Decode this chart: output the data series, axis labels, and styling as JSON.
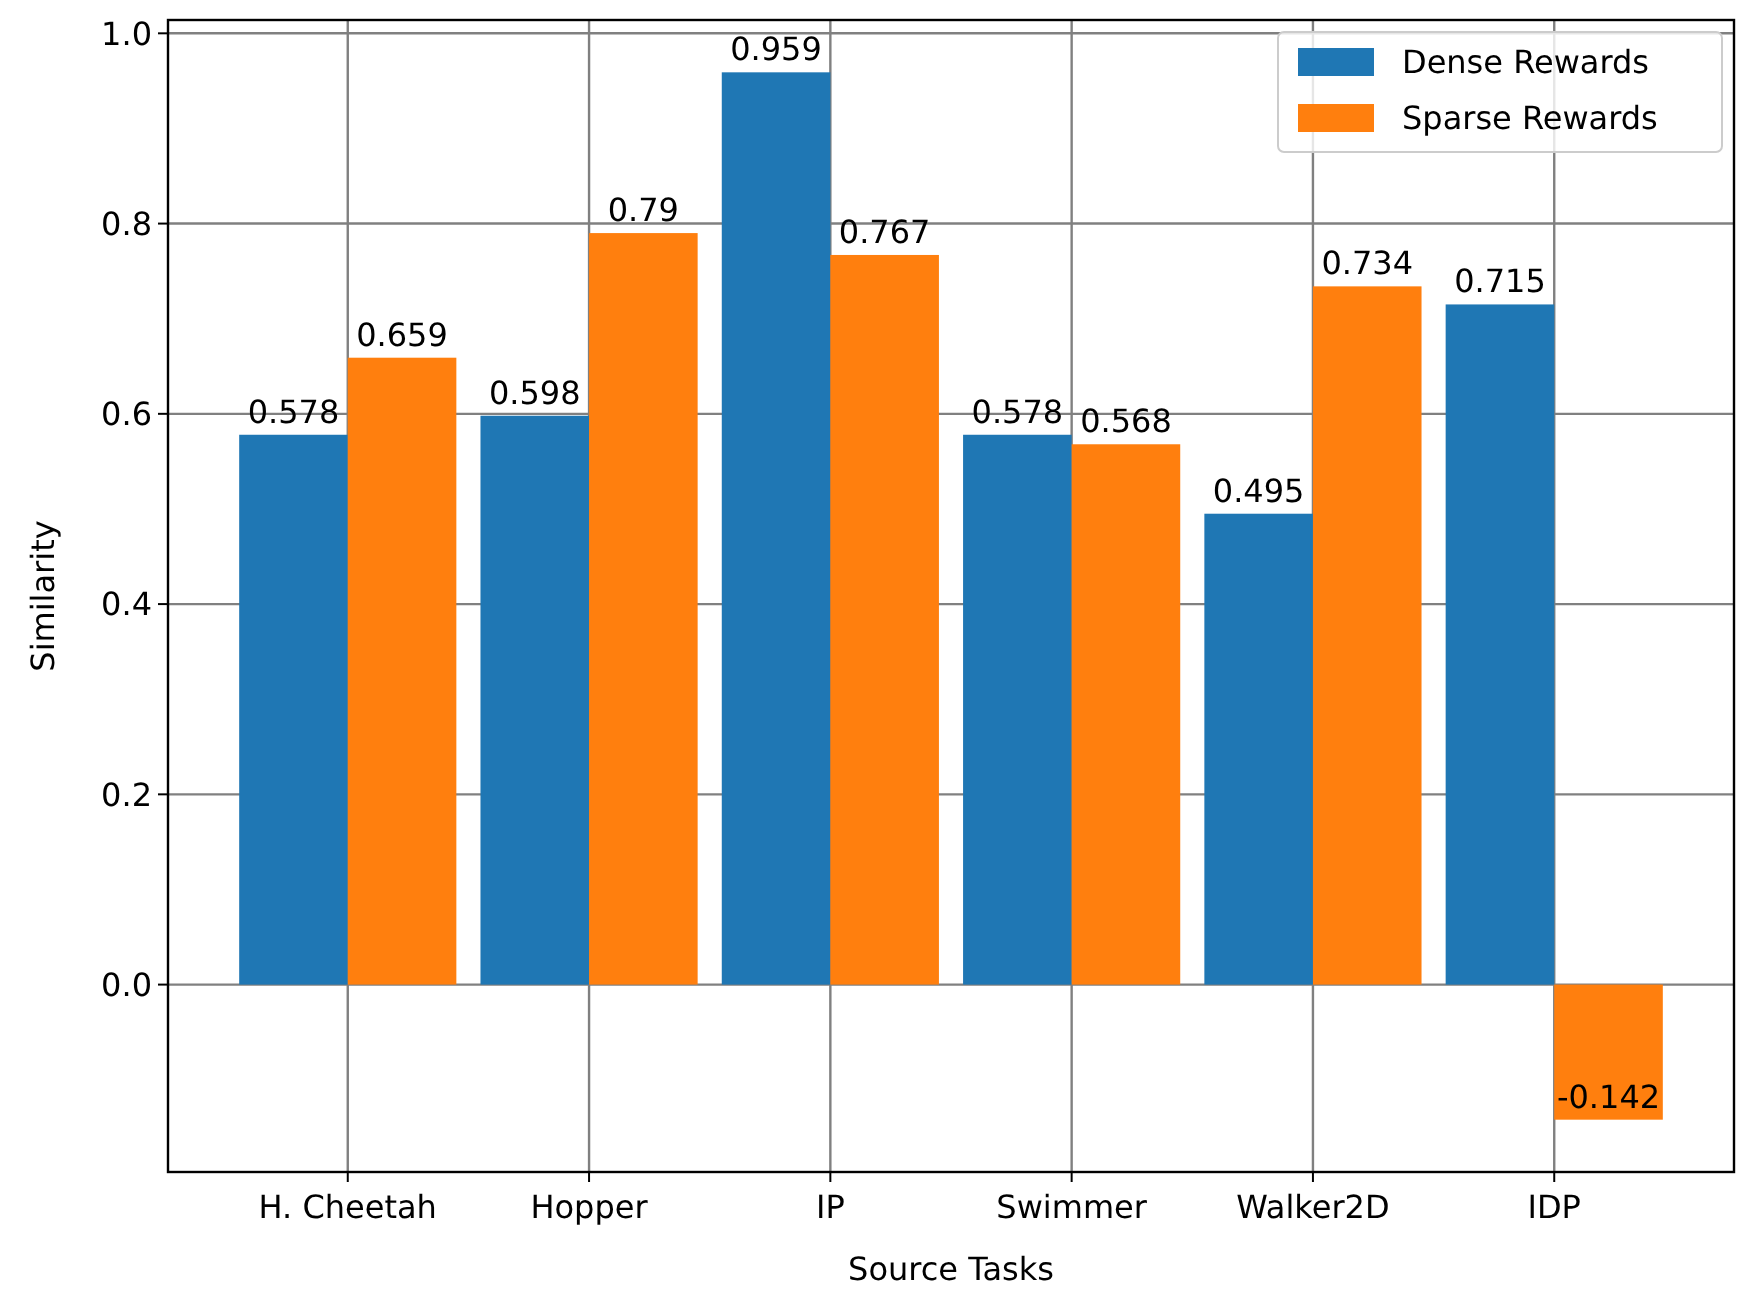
{
  "chart_data": {
    "type": "bar",
    "xlabel": "Source Tasks",
    "ylabel": "Similarity",
    "categories": [
      "H. Cheetah",
      "Hopper",
      "IP",
      "Swimmer",
      "Walker2D",
      "IDP"
    ],
    "series": [
      {
        "name": "Dense Rewards",
        "color": "#1f77b4",
        "values": [
          0.578,
          0.598,
          0.959,
          0.578,
          0.495,
          0.715
        ]
      },
      {
        "name": "Sparse Rewards",
        "color": "#ff7f0e",
        "values": [
          0.659,
          0.79,
          0.767,
          0.568,
          0.734,
          -0.142
        ]
      }
    ],
    "ylim": [
      -0.197,
      1.014
    ],
    "yticks": [
      {
        "value": 0,
        "label": "0.0"
      },
      {
        "value": 0.2,
        "label": "0.2"
      },
      {
        "value": 0.4,
        "label": "0.4"
      },
      {
        "value": 0.6,
        "label": "0.6"
      },
      {
        "value": 0.8,
        "label": "0.8"
      },
      {
        "value": 1,
        "label": "1.0"
      }
    ],
    "grid": true,
    "legend": "top right",
    "data_labels": true
  }
}
